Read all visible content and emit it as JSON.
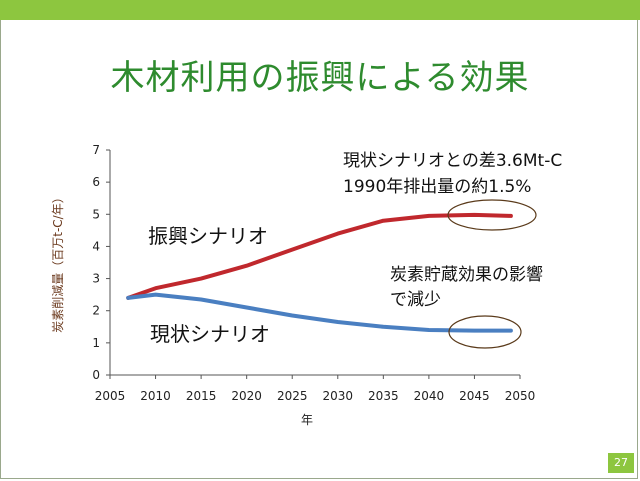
{
  "slide": {
    "title": "木材利用の振興による効果",
    "page_number": "27",
    "accent_color": "#8dc63f",
    "title_color": "#2e8b2e"
  },
  "chart_data": {
    "type": "line",
    "xlabel": "年",
    "ylabel": "炭素削減量（百万t-C/年）",
    "xlim": [
      2005,
      2050
    ],
    "ylim": [
      0,
      7
    ],
    "xticks": [
      2005,
      2010,
      2015,
      2020,
      2025,
      2030,
      2035,
      2040,
      2045,
      2050
    ],
    "yticks": [
      0,
      1,
      2,
      3,
      4,
      5,
      6,
      7
    ],
    "grid": false,
    "series": [
      {
        "name": "振興シナリオ",
        "color": "#c0282d",
        "x": [
          2007,
          2010,
          2015,
          2020,
          2025,
          2030,
          2035,
          2040,
          2045,
          2049
        ],
        "y": [
          2.4,
          2.7,
          3.0,
          3.4,
          3.9,
          4.4,
          4.8,
          4.95,
          4.98,
          4.95
        ]
      },
      {
        "name": "現状シナリオ",
        "color": "#4a7fc1",
        "x": [
          2007,
          2010,
          2015,
          2020,
          2025,
          2030,
          2035,
          2040,
          2045,
          2049
        ],
        "y": [
          2.4,
          2.5,
          2.35,
          2.1,
          1.85,
          1.65,
          1.5,
          1.4,
          1.38,
          1.38
        ]
      }
    ],
    "annotations": [
      {
        "lines": [
          "現状シナリオとの差3.6Mt-C",
          "1990年排出量の約1.5%"
        ]
      },
      {
        "lines": [
          "炭素貯蔵効果の影響",
          "で減少"
        ]
      }
    ]
  }
}
